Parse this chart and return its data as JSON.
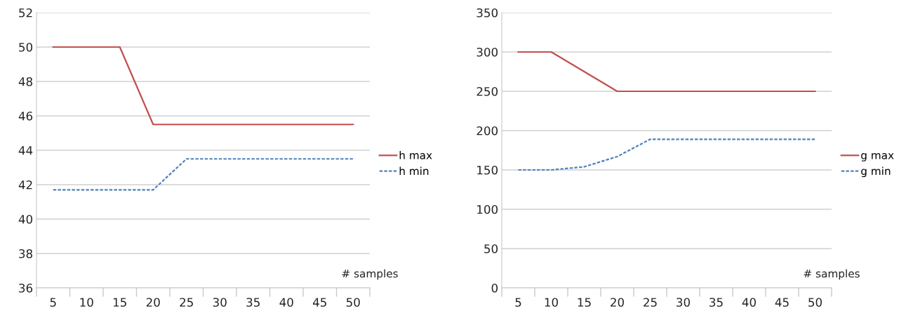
{
  "chart_data": [
    {
      "type": "line",
      "xlabel": "# samples",
      "categories": [
        "5",
        "10",
        "15",
        "20",
        "25",
        "30",
        "35",
        "40",
        "45",
        "50"
      ],
      "series": [
        {
          "name": "h max",
          "color": "#c0504d",
          "line_style": "solid",
          "values": [
            50,
            50,
            50,
            45.5,
            45.5,
            45.5,
            45.5,
            45.5,
            45.5,
            45.5
          ]
        },
        {
          "name": "h min",
          "color": "#4f81bd",
          "line_style": "dashed",
          "values": [
            41.7,
            41.7,
            41.7,
            41.7,
            43.5,
            43.5,
            43.5,
            43.5,
            43.5,
            43.5
          ]
        }
      ],
      "ylim": [
        36,
        52
      ],
      "yticks": [
        36,
        38,
        40,
        42,
        44,
        46,
        48,
        50,
        52
      ],
      "grid": "y",
      "legend": "right"
    },
    {
      "type": "line",
      "xlabel": "# samples",
      "categories": [
        "5",
        "10",
        "15",
        "20",
        "25",
        "30",
        "35",
        "40",
        "45",
        "50"
      ],
      "series": [
        {
          "name": "g max",
          "color": "#c0504d",
          "line_style": "solid",
          "values": [
            300,
            300,
            275,
            250,
            250,
            250,
            250,
            250,
            250,
            250
          ]
        },
        {
          "name": "g min",
          "color": "#4f81bd",
          "line_style": "dashed",
          "values": [
            150,
            150,
            154,
            167,
            189,
            189,
            189,
            189,
            189,
            189
          ]
        }
      ],
      "ylim": [
        0,
        350
      ],
      "yticks": [
        0,
        50,
        100,
        150,
        200,
        250,
        300,
        350
      ],
      "grid": "y",
      "legend": "right"
    }
  ]
}
